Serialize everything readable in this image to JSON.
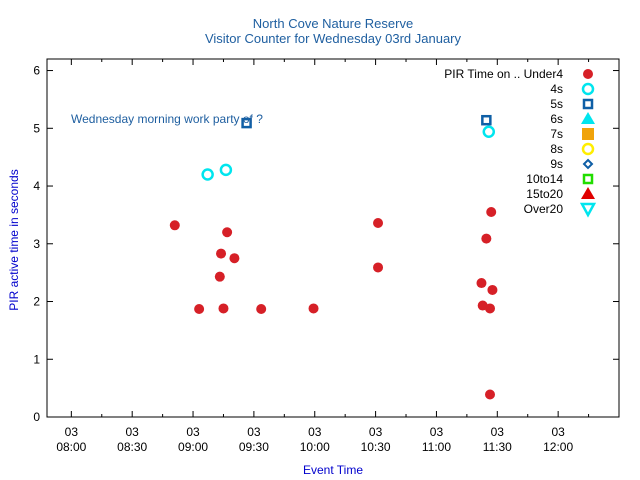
{
  "chart_data": {
    "type": "scatter",
    "title": "North Cove Nature Reserve",
    "subtitle": "Visitor Counter for Wednesday 03rd January",
    "xlabel": "Event Time",
    "ylabel": "PIR active time in seconds",
    "annotation": "Wednesday morning work party of ?",
    "xlim": [
      7.8,
      12.5
    ],
    "ylim": [
      0,
      6.2
    ],
    "x_ticks": [
      {
        "value": 8.0,
        "day": "03",
        "time": "08:00"
      },
      {
        "value": 8.5,
        "day": "03",
        "time": "08:30"
      },
      {
        "value": 9.0,
        "day": "03",
        "time": "09:00"
      },
      {
        "value": 9.5,
        "day": "03",
        "time": "09:30"
      },
      {
        "value": 10.0,
        "day": "03",
        "time": "10:00"
      },
      {
        "value": 10.5,
        "day": "03",
        "time": "10:30"
      },
      {
        "value": 11.0,
        "day": "03",
        "time": "11:00"
      },
      {
        "value": 11.5,
        "day": "03",
        "time": "11:30"
      },
      {
        "value": 12.0,
        "day": "03",
        "time": "12:00"
      }
    ],
    "y_ticks": [
      "0",
      "1",
      "2",
      "3",
      "4",
      "5",
      "6"
    ],
    "legend_title": "PIR Time on ..",
    "legend_position": "top-right",
    "series": [
      {
        "name": "Under4",
        "color": "#d62027",
        "marker": "circle-filled",
        "points": [
          [
            8.85,
            3.32
          ],
          [
            9.05,
            1.87
          ],
          [
            9.22,
            2.43
          ],
          [
            9.23,
            2.83
          ],
          [
            9.25,
            1.88
          ],
          [
            9.28,
            3.2
          ],
          [
            9.34,
            2.75
          ],
          [
            9.56,
            1.87
          ],
          [
            9.99,
            1.88
          ],
          [
            10.52,
            3.36
          ],
          [
            10.52,
            2.59
          ],
          [
            11.37,
            2.32
          ],
          [
            11.38,
            1.93
          ],
          [
            11.41,
            3.09
          ],
          [
            11.44,
            1.88
          ],
          [
            11.45,
            3.55
          ],
          [
            11.46,
            2.2
          ],
          [
            11.44,
            0.39
          ]
        ]
      },
      {
        "name": "4s",
        "color": "#00e5ee",
        "marker": "circle-open",
        "points": [
          [
            9.12,
            4.2
          ],
          [
            9.27,
            4.28
          ],
          [
            11.43,
            4.94
          ]
        ]
      },
      {
        "name": "5s",
        "color": "#0f5fa6",
        "marker": "square-open",
        "points": [
          [
            9.44,
            5.09
          ],
          [
            11.41,
            5.14
          ]
        ]
      },
      {
        "name": "6s",
        "color": "#00e5ee",
        "marker": "triangle-filled",
        "points": []
      },
      {
        "name": "7s",
        "color": "#f0a30a",
        "marker": "square-filled",
        "points": []
      },
      {
        "name": "8s",
        "color": "#ffee00",
        "marker": "circle-open",
        "points": []
      },
      {
        "name": "9s",
        "color": "#0f5fa6",
        "marker": "diamond-open",
        "points": []
      },
      {
        "name": "10to14",
        "color": "#22dd00",
        "marker": "square-open",
        "points": []
      },
      {
        "name": "15to20",
        "color": "#e00000",
        "marker": "triangle-filled",
        "points": []
      },
      {
        "name": "Over20",
        "color": "#00e5ee",
        "marker": "triangle-down-open",
        "points": []
      }
    ]
  }
}
